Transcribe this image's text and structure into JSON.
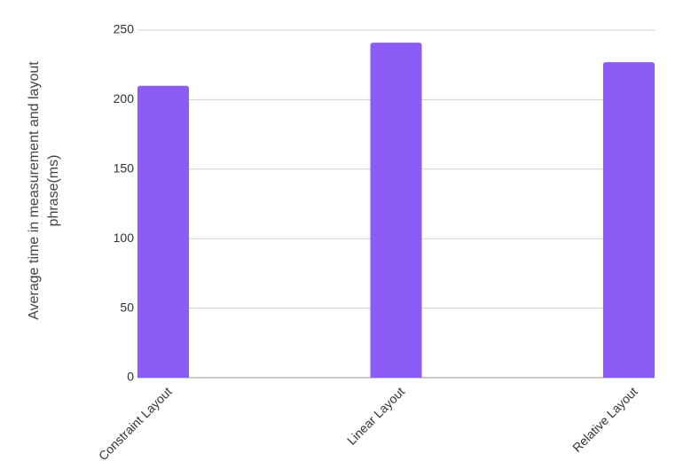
{
  "chart_data": {
    "type": "bar",
    "y_label": "Average time in measurement and layout phrase(ms)",
    "categories": [
      "Constraint Layout",
      "Linear Layout",
      "Relative Layout"
    ],
    "values": [
      210,
      241,
      227
    ],
    "color": "#8b5cf6",
    "ylim": [
      0,
      250
    ],
    "yticks": [
      0,
      50,
      100,
      150,
      200,
      250
    ],
    "grid": true
  }
}
